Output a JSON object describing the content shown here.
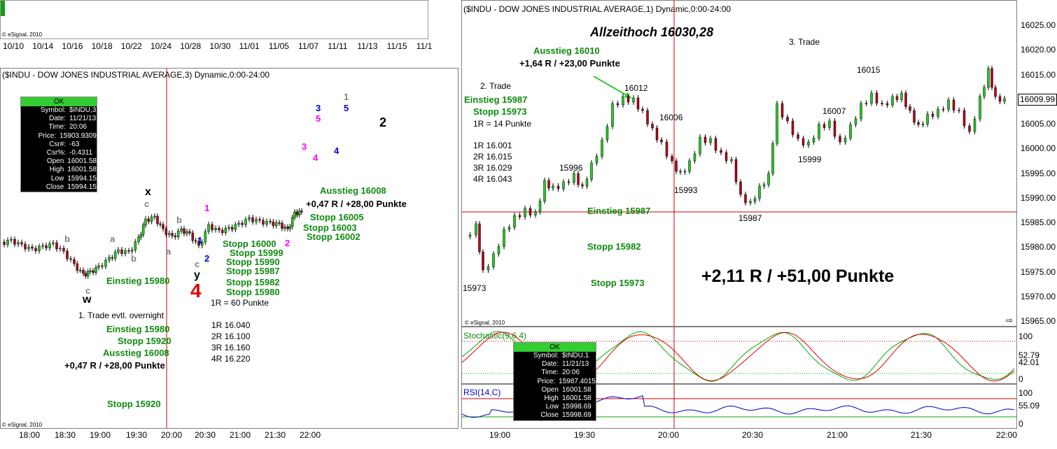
{
  "colors": {
    "green": "#0f8a0f",
    "red": "#d40000",
    "blue": "#0000cc",
    "magenta": "#ff00ff",
    "gray": "#808080"
  },
  "top_panel": {
    "copyright": "© eSignal, 2010",
    "dates": [
      "10/10",
      "10/14",
      "10/16",
      "10/18",
      "10/22",
      "10/24",
      "10/28",
      "10/30",
      "11/01",
      "11/05",
      "11/07",
      "11/11",
      "11/13",
      "11/15",
      "11/1"
    ]
  },
  "left": {
    "title": "($INDU - DOW JONES INDUSTRIAL AVERAGE,3) Dynamic,0:00-24:00",
    "copyright": "© eSignal, 2010",
    "times": [
      "18:00",
      "18:30",
      "19:00",
      "19:30",
      "20:00",
      "20:30",
      "21:00",
      "21:30",
      "22:00"
    ],
    "infobox": {
      "status": "OK",
      "rows": [
        [
          "Symbol:",
          "$INDU,3"
        ],
        [
          "Date:",
          "11/21/13"
        ],
        [
          "Time:",
          "20:06"
        ],
        [
          "Price:",
          "15903.9309"
        ],
        [
          "Csr#:",
          "-63"
        ],
        [
          "Csr%:",
          "-0.4311"
        ],
        [
          "Open",
          "16001.58"
        ],
        [
          "High",
          "16001.58"
        ],
        [
          "Low",
          "15994.15"
        ],
        [
          "Close",
          "15994.15"
        ]
      ]
    },
    "waves": {
      "x": "x",
      "w": "w",
      "y": "y",
      "four": "4",
      "two": "2",
      "c": "c",
      "a": "a",
      "b": "b",
      "one": "1",
      "three": "3",
      "five": "5"
    },
    "notes": {
      "exit1": "Ausstieg 16008",
      "result1": "+0,47 R / +28,00 Punkte",
      "stops": [
        "Stopp 16005",
        "Stopp 16003",
        "Stopp 16002"
      ],
      "stops2": [
        "Stopp 16000",
        "Stopp 15999",
        "Stopp 15990",
        "Stopp 15987",
        "Stopp 15982",
        "Stopp 15980"
      ],
      "entry_chart": "Einstieg 15980",
      "risk": "1R = 60 Punkte",
      "targets": [
        "1R 16.040",
        "2R 16.100",
        "3R 16.160",
        "4R 16.220"
      ],
      "trade1": "1. Trade evtl. overnight",
      "entry": "Einstieg 15980",
      "stop": "Stopp 15920",
      "exit": "Ausstieg 16008",
      "result": "+0,47 R / +28,00 Punkte",
      "stop_bottom": "Stopp 15920"
    }
  },
  "right": {
    "title": "($INDU - DOW JONES INDUSTRIAL AVERAGE,1) Dynamic,0:00-24:00",
    "copyright": "© eSignal, 2010",
    "prices": [
      "16025.00",
      "16020.00",
      "16015.00",
      "16010.00",
      "16005.00",
      "16000.00",
      "15995.00",
      "15990.00",
      "15985.00",
      "15980.00",
      "15975.00",
      "15970.00",
      "15965.00"
    ],
    "current_price": "16009.99",
    "times": [
      "19:00",
      "19:30",
      "20:00",
      "20:30",
      "21:00",
      "21:30",
      "22:00"
    ],
    "headline": "Allzeithoch 16030,28",
    "trade3": "3. Trade",
    "exit": "Ausstieg 16010",
    "exit_result": "+1,64 R / +23,00 Punkte",
    "trade2": "2. Trade",
    "entry": "Einstieg 15987",
    "stop": "Stopp 15973",
    "risk": "1R = 14 Punkte",
    "targets": [
      "1R 16.001",
      "2R 16.015",
      "3R 16.029",
      "4R 16.043"
    ],
    "level_labels": [
      "16012",
      "16006",
      "15996",
      "15993",
      "15987",
      "15973",
      "16015",
      "16007",
      "15999"
    ],
    "entry_line": "Einstieg 15987",
    "stop_line1": "Stopp 15982",
    "stop_line2": "Stopp 15973",
    "total": "+2,11 R / +51,00 Punkte",
    "stoch": {
      "label": "Stochastic(9,6,4)",
      "levels": [
        "100",
        "52.79",
        "42.01",
        "0"
      ]
    },
    "rsi": {
      "label": "RSI(14,C)",
      "levels": [
        "100",
        "55.09",
        "0"
      ]
    },
    "infobox": {
      "status": "OK",
      "rows": [
        [
          "Symbol:",
          "$INDU,1"
        ],
        [
          "Date:",
          "11/21/13"
        ],
        [
          "Time:",
          "20:06"
        ],
        [
          "Price:",
          "15987.4015"
        ],
        [
          "Open",
          "16001.58"
        ],
        [
          "High",
          "16001.58"
        ],
        [
          "Low",
          "15998.69"
        ],
        [
          "Close",
          "15998.69"
        ]
      ]
    }
  }
}
